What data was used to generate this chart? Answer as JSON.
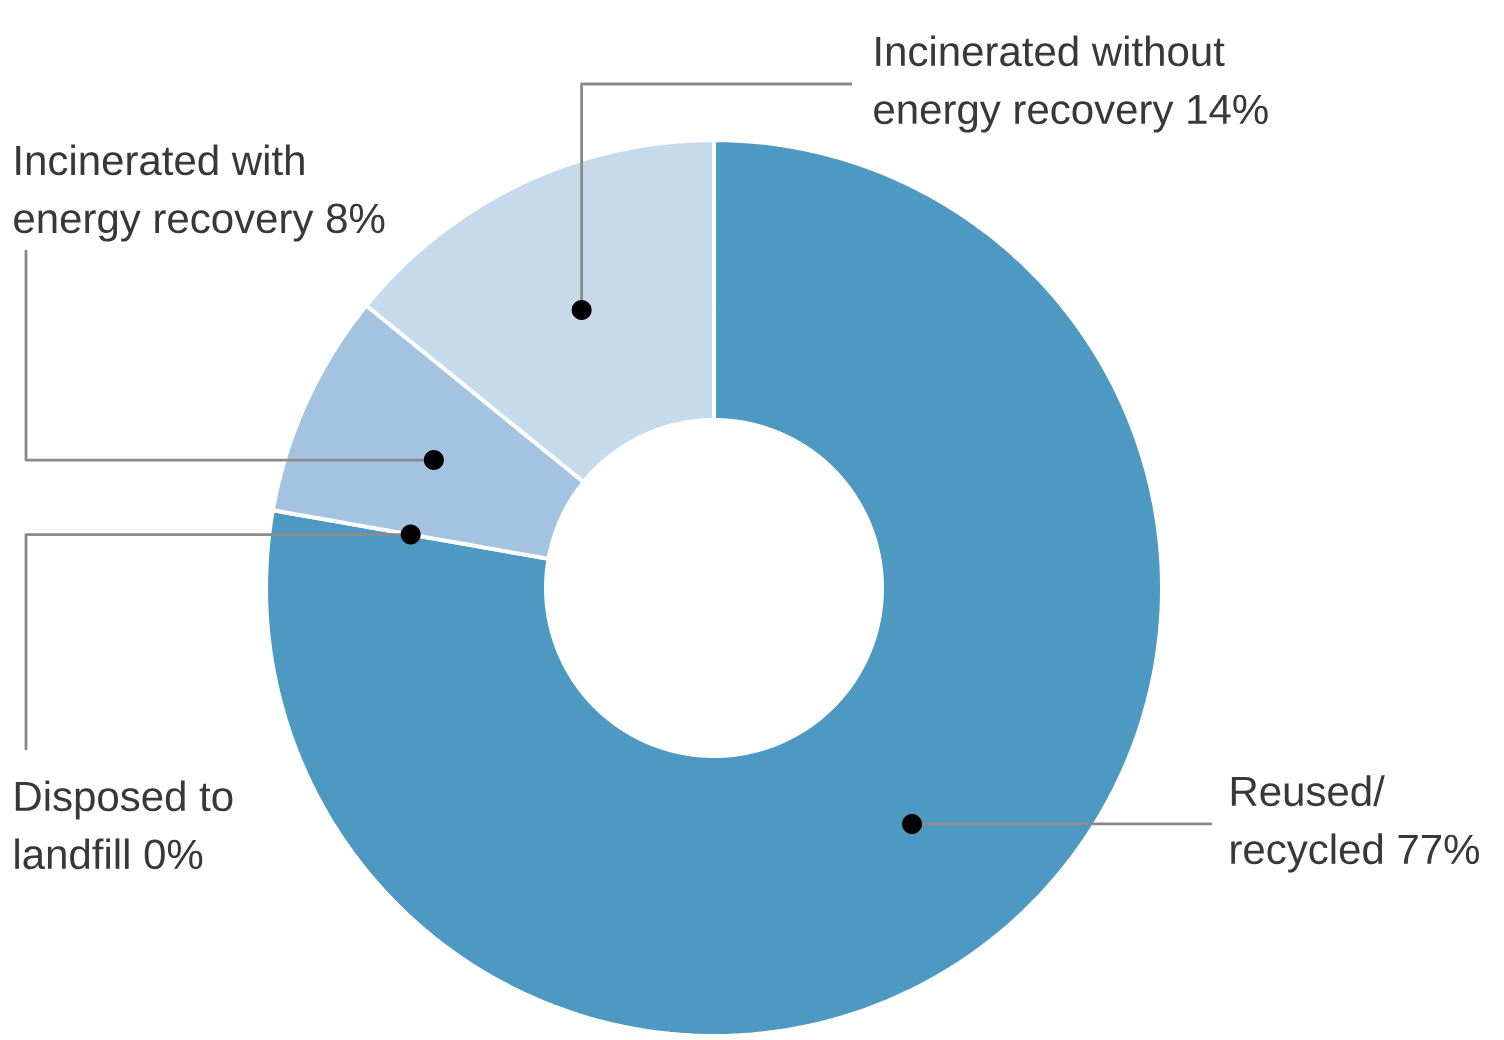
{
  "chart_data": {
    "type": "donut",
    "categories": [
      "Reused/ recycled 77%",
      "Disposed to landfill 0%",
      "Incinerated with energy recovery 8%",
      "Incinerated without energy recovery 14%"
    ],
    "values": [
      77,
      0,
      8,
      14
    ],
    "colors": [
      "#4e99c1",
      "#b3cde5",
      "#a4c3e0",
      "#c5daeb"
    ]
  }
}
